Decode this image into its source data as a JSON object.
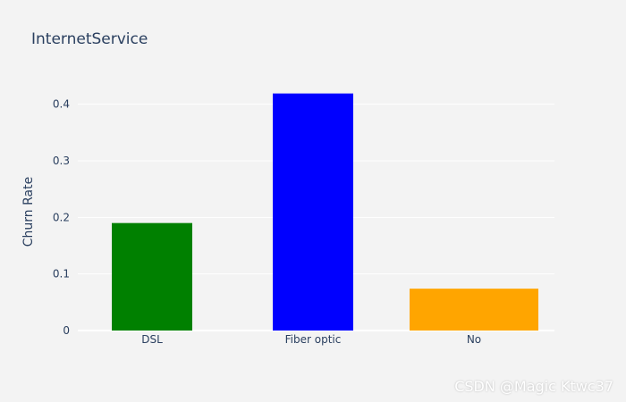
{
  "chart_data": {
    "type": "bar",
    "title": "InternetService",
    "xlabel": "",
    "ylabel": "Churn Rate",
    "categories": [
      "DSL",
      "Fiber optic",
      "No"
    ],
    "values": [
      0.19,
      0.419,
      0.074
    ],
    "colors": [
      "#008000",
      "#0000ff",
      "#ffa500"
    ],
    "ylim": [
      0,
      0.42
    ],
    "yticks": [
      0,
      0.1,
      0.2,
      0.3,
      0.4
    ],
    "ytick_labels": [
      "0",
      "0.1",
      "0.2",
      "0.3",
      "0.4"
    ],
    "grid": true,
    "legend": "none"
  },
  "watermark": "CSDN @Magic Ktwc37"
}
